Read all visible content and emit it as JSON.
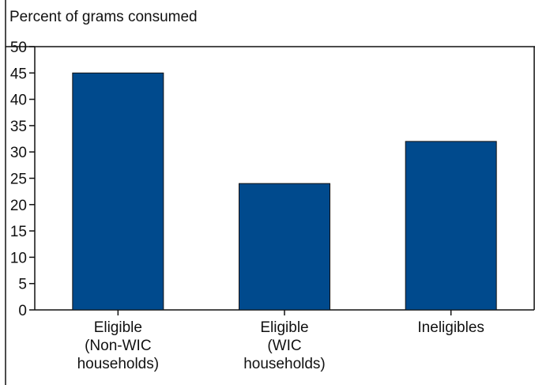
{
  "chart_data": {
    "type": "bar",
    "title": "",
    "ylabel": "Percent of grams consumed",
    "xlabel": "",
    "ylim": [
      0,
      50
    ],
    "yticks": [
      0,
      5,
      10,
      15,
      20,
      25,
      30,
      35,
      40,
      45,
      50
    ],
    "categories": [
      [
        "Eligible",
        "(Non-WIC",
        "households)"
      ],
      [
        "Eligible",
        "(WIC",
        "households)"
      ],
      [
        "Ineligibles"
      ]
    ],
    "values": [
      45,
      24,
      32
    ],
    "bar_color": "#004a8d",
    "grid": false,
    "legend": "none"
  }
}
